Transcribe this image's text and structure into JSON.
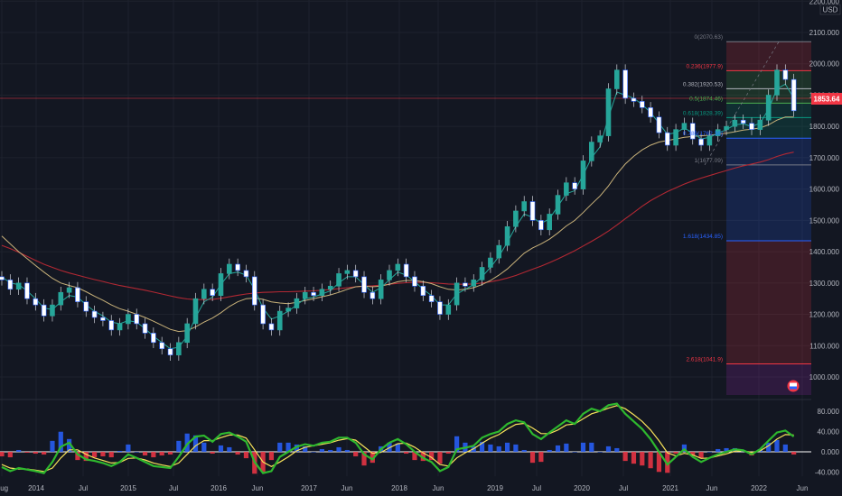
{
  "currency": "USD",
  "last_price": "1853.64",
  "price_axis": {
    "ticks": [
      "2200.000",
      "2100.000",
      "2000.000",
      "1900.000",
      "1800.000",
      "1700.000",
      "1600.000",
      "1500.000",
      "1400.000",
      "1300.000",
      "1200.000",
      "1100.000",
      "1000.000"
    ],
    "range": [
      880,
      2200
    ]
  },
  "time_axis": {
    "ticks": [
      "Aug",
      "2014",
      "Jul",
      "2015",
      "Jul",
      "2016",
      "Jun",
      "2017",
      "Jun",
      "2018",
      "Jun",
      "2019",
      "Jul",
      "2020",
      "Jul",
      "2021",
      "Jun",
      "2022",
      "Jun"
    ]
  },
  "fibonacci": {
    "levels": [
      {
        "label": "0(2070.63)",
        "price": 2070.63,
        "color": "#787b86"
      },
      {
        "label": "0.236(1977.9)",
        "price": 1977.9,
        "color": "#f23645"
      },
      {
        "label": "0.382(1920.53)",
        "price": 1920.53,
        "color": "#b2b5be"
      },
      {
        "label": "0.5(1874.46)",
        "price": 1874.46,
        "color": "#4caf50"
      },
      {
        "label": "0.618(1828.39)",
        "price": 1828.39,
        "color": "#089981"
      },
      {
        "label": "0.786(1762.38)",
        "price": 1762.38,
        "color": "#2962ff"
      },
      {
        "label": "1(1677.09)",
        "price": 1677.09,
        "color": "#787b86"
      },
      {
        "label": "1.618(1434.85)",
        "price": 1434.85,
        "color": "#2962ff"
      },
      {
        "label": "2.618(1041.9)",
        "price": 1041.9,
        "color": "#f23645"
      }
    ]
  },
  "oscillator": {
    "ticks": [
      "80.000",
      "40.000",
      "0.000",
      "-40.000"
    ],
    "range": [
      -55,
      100
    ]
  },
  "chart_data": {
    "type": "candlestick",
    "series": [
      {
        "name": "price_close",
        "values": [
          1310,
          1280,
          1300,
          1250,
          1230,
          1195,
          1230,
          1270,
          1285,
          1240,
          1210,
          1190,
          1180,
          1150,
          1170,
          1200,
          1170,
          1140,
          1110,
          1090,
          1070,
          1110,
          1170,
          1250,
          1280,
          1260,
          1330,
          1360,
          1340,
          1320,
          1230,
          1170,
          1150,
          1210,
          1220,
          1250,
          1270,
          1260,
          1280,
          1290,
          1330,
          1340,
          1320,
          1270,
          1250,
          1310,
          1340,
          1360,
          1320,
          1290,
          1260,
          1240,
          1200,
          1230,
          1300,
          1290,
          1310,
          1350,
          1380,
          1420,
          1480,
          1530,
          1560,
          1500,
          1470,
          1520,
          1580,
          1620,
          1600,
          1690,
          1750,
          1770,
          1920,
          1980,
          1890,
          1880,
          1860,
          1830,
          1780,
          1740,
          1790,
          1810,
          1760,
          1740,
          1770,
          1790,
          1800,
          1820,
          1810,
          1790,
          1820,
          1900,
          1980,
          1950,
          1850
        ]
      },
      {
        "name": "ema_fast",
        "values": [
          1320,
          1300,
          1295,
          1275,
          1250,
          1220,
          1215,
          1240,
          1260,
          1255,
          1230,
          1210,
          1195,
          1175,
          1170,
          1180,
          1175,
          1155,
          1130,
          1110,
          1090,
          1095,
          1130,
          1190,
          1240,
          1255,
          1295,
          1330,
          1335,
          1325,
          1280,
          1220,
          1185,
          1195,
          1210,
          1230,
          1250,
          1255,
          1265,
          1275,
          1300,
          1320,
          1320,
          1295,
          1270,
          1285,
          1310,
          1335,
          1325,
          1305,
          1280,
          1260,
          1230,
          1230,
          1265,
          1280,
          1295,
          1320,
          1350,
          1385,
          1430,
          1480,
          1520,
          1510,
          1490,
          1505,
          1545,
          1585,
          1595,
          1645,
          1700,
          1735,
          1830,
          1910,
          1900,
          1890,
          1870,
          1845,
          1810,
          1775,
          1780,
          1795,
          1780,
          1760,
          1765,
          1778,
          1790,
          1805,
          1808,
          1800,
          1810,
          1855,
          1920,
          1935,
          1890
        ]
      },
      {
        "name": "ma_mid",
        "values": [
          1450,
          1425,
          1400,
          1378,
          1356,
          1335,
          1315,
          1300,
          1292,
          1285,
          1272,
          1258,
          1245,
          1230,
          1218,
          1210,
          1200,
          1190,
          1178,
          1165,
          1152,
          1145,
          1148,
          1160,
          1175,
          1188,
          1205,
          1225,
          1240,
          1250,
          1252,
          1248,
          1240,
          1236,
          1234,
          1238,
          1244,
          1250,
          1256,
          1262,
          1270,
          1280,
          1288,
          1290,
          1288,
          1290,
          1296,
          1304,
          1308,
          1308,
          1304,
          1298,
          1288,
          1280,
          1278,
          1280,
          1285,
          1295,
          1308,
          1325,
          1345,
          1370,
          1395,
          1412,
          1425,
          1440,
          1460,
          1482,
          1500,
          1525,
          1552,
          1578,
          1610,
          1648,
          1680,
          1705,
          1725,
          1740,
          1750,
          1755,
          1760,
          1765,
          1768,
          1770,
          1772,
          1775,
          1778,
          1783,
          1788,
          1791,
          1795,
          1805,
          1820,
          1830,
          1830
        ]
      },
      {
        "name": "ma_slow",
        "values": [
          1420,
          1410,
          1398,
          1385,
          1372,
          1360,
          1350,
          1340,
          1332,
          1325,
          1318,
          1311,
          1305,
          1298,
          1292,
          1287,
          1282,
          1277,
          1271,
          1265,
          1259,
          1253,
          1249,
          1247,
          1247,
          1248,
          1251,
          1256,
          1261,
          1265,
          1268,
          1270,
          1271,
          1272,
          1272,
          1273,
          1274,
          1275,
          1277,
          1279,
          1282,
          1285,
          1288,
          1290,
          1291,
          1293,
          1296,
          1299,
          1301,
          1302,
          1302,
          1301,
          1299,
          1297,
          1296,
          1296,
          1297,
          1300,
          1304,
          1309,
          1316,
          1324,
          1334,
          1344,
          1354,
          1365,
          1377,
          1390,
          1403,
          1418,
          1433,
          1449,
          1466,
          1485,
          1505,
          1525,
          1545,
          1563,
          1578,
          1592,
          1604,
          1616,
          1626,
          1635,
          1643,
          1651,
          1659,
          1667,
          1674,
          1680,
          1686,
          1694,
          1704,
          1712,
          1718
        ]
      },
      {
        "name": "osc_fast",
        "values": [
          -30,
          -38,
          -32,
          -35,
          -38,
          -42,
          -20,
          10,
          18,
          -5,
          -15,
          -18,
          -22,
          -28,
          -20,
          -5,
          -12,
          -20,
          -28,
          -30,
          -32,
          -10,
          15,
          30,
          32,
          20,
          35,
          38,
          30,
          20,
          -20,
          -42,
          -38,
          -10,
          0,
          10,
          15,
          12,
          18,
          20,
          28,
          28,
          18,
          -5,
          -15,
          5,
          18,
          25,
          15,
          0,
          -12,
          -20,
          -38,
          -30,
          5,
          8,
          12,
          28,
          35,
          40,
          55,
          62,
          58,
          35,
          25,
          38,
          50,
          62,
          55,
          75,
          85,
          80,
          92,
          95,
          75,
          60,
          45,
          25,
          0,
          -25,
          -10,
          5,
          -10,
          -20,
          -12,
          -5,
          0,
          5,
          3,
          -5,
          5,
          22,
          38,
          42,
          30
        ]
      },
      {
        "name": "osc_slow",
        "values": [
          -25,
          -32,
          -34,
          -34,
          -36,
          -39,
          -32,
          -12,
          4,
          4,
          -5,
          -12,
          -17,
          -22,
          -21,
          -13,
          -12,
          -16,
          -22,
          -26,
          -29,
          -22,
          -5,
          12,
          22,
          22,
          28,
          33,
          33,
          27,
          4,
          -20,
          -29,
          -20,
          -10,
          2,
          9,
          12,
          15,
          18,
          23,
          26,
          23,
          10,
          -3,
          -1,
          8,
          16,
          17,
          9,
          -2,
          -11,
          -25,
          -28,
          -12,
          -2,
          6,
          17,
          27,
          34,
          45,
          54,
          56,
          47,
          36,
          36,
          43,
          53,
          55,
          65,
          75,
          80,
          86,
          91,
          85,
          73,
          60,
          43,
          22,
          -2,
          -8,
          -3,
          -6,
          -13,
          -12,
          -8,
          -4,
          1,
          2,
          -1,
          2,
          12,
          25,
          34,
          33
        ]
      }
    ]
  }
}
